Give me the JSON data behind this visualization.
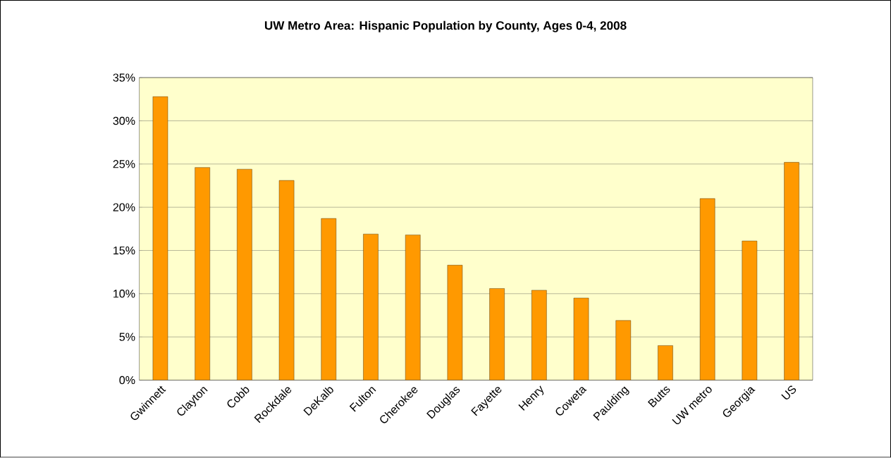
{
  "chart_data": {
    "type": "bar",
    "title": "UW Metro Area:  Hispanic Population by County, Ages 0-4, 2008",
    "categories": [
      "Gwinnett",
      "Clayton",
      "Cobb",
      "Rockdale",
      "DeKalb",
      "Fulton",
      "Cherokee",
      "Douglas",
      "Fayette",
      "Henry",
      "Coweta",
      "Paulding",
      "Butts",
      "UW metro",
      "Georgia",
      "US"
    ],
    "values": [
      32.8,
      24.6,
      24.4,
      23.1,
      18.7,
      16.9,
      16.8,
      13.3,
      10.6,
      10.4,
      9.5,
      6.9,
      4.0,
      21.0,
      16.1,
      25.2
    ],
    "color": "#ff9900",
    "ylim": [
      0,
      35
    ],
    "yticks": [
      {
        "value": 0,
        "label": "0%"
      },
      {
        "value": 5,
        "label": "5%"
      },
      {
        "value": 10,
        "label": "10%"
      },
      {
        "value": 15,
        "label": "15%"
      },
      {
        "value": 20,
        "label": "20%"
      },
      {
        "value": 25,
        "label": "25%"
      },
      {
        "value": 30,
        "label": "30%"
      },
      {
        "value": 35,
        "label": "35%"
      }
    ],
    "grid": "y"
  }
}
